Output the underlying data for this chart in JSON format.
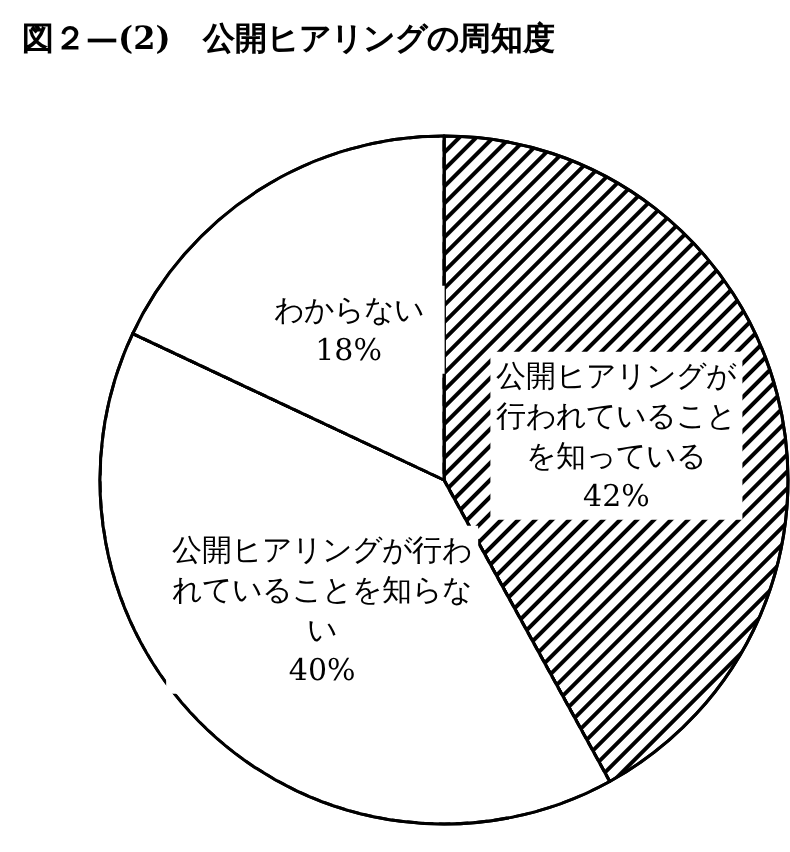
{
  "chart_data": {
    "type": "pie",
    "title": "図２—(2)　公開ヒアリングの周知度",
    "categories": [
      "公開ヒアリングが行われていることを知っている",
      "公開ヒアリングが行われていることを知らない",
      "わからない"
    ],
    "values": [
      42,
      40,
      18
    ],
    "value_labels": [
      "42%",
      "40%",
      "18%"
    ],
    "colors": [
      "#000000",
      "#ffffff",
      "#ffffff"
    ],
    "legend": false
  }
}
